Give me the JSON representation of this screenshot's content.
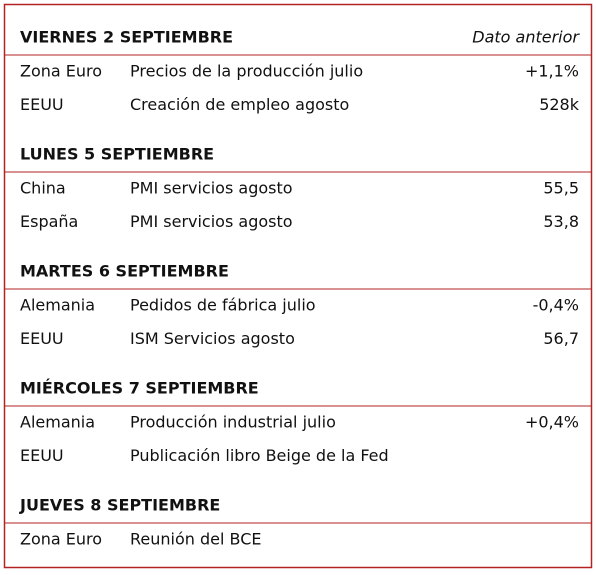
{
  "header": {
    "column_label": "Dato anterior"
  },
  "sections": [
    {
      "title": "VIERNES 2 SEPTIEMBRE",
      "rows": [
        {
          "country": "Zona Euro",
          "event": "Precios de la producción julio",
          "previous": "+1,1%"
        },
        {
          "country": "EEUU",
          "event": "Creación de empleo agosto",
          "previous": "528k"
        }
      ]
    },
    {
      "title": "LUNES 5 SEPTIEMBRE",
      "rows": [
        {
          "country": "China",
          "event": "PMI servicios agosto",
          "previous": "55,5"
        },
        {
          "country": "España",
          "event": "PMI servicios agosto",
          "previous": "53,8"
        }
      ]
    },
    {
      "title": "MARTES 6 SEPTIEMBRE",
      "rows": [
        {
          "country": "Alemania",
          "event": "Pedidos de fábrica julio",
          "previous": "-0,4%"
        },
        {
          "country": "EEUU",
          "event": "ISM Servicios agosto",
          "previous": "56,7"
        }
      ]
    },
    {
      "title": "MIÉRCOLES 7 SEPTIEMBRE",
      "rows": [
        {
          "country": "Alemania",
          "event": "Producción industrial julio",
          "previous": "+0,4%"
        },
        {
          "country": "EEUU",
          "event": "Publicación libro Beige de la Fed"
        }
      ]
    },
    {
      "title": "JUEVES 8 SEPTIEMBRE",
      "rows": [
        {
          "country": "Zona Euro",
          "event": "Reunión del BCE"
        }
      ]
    }
  ]
}
